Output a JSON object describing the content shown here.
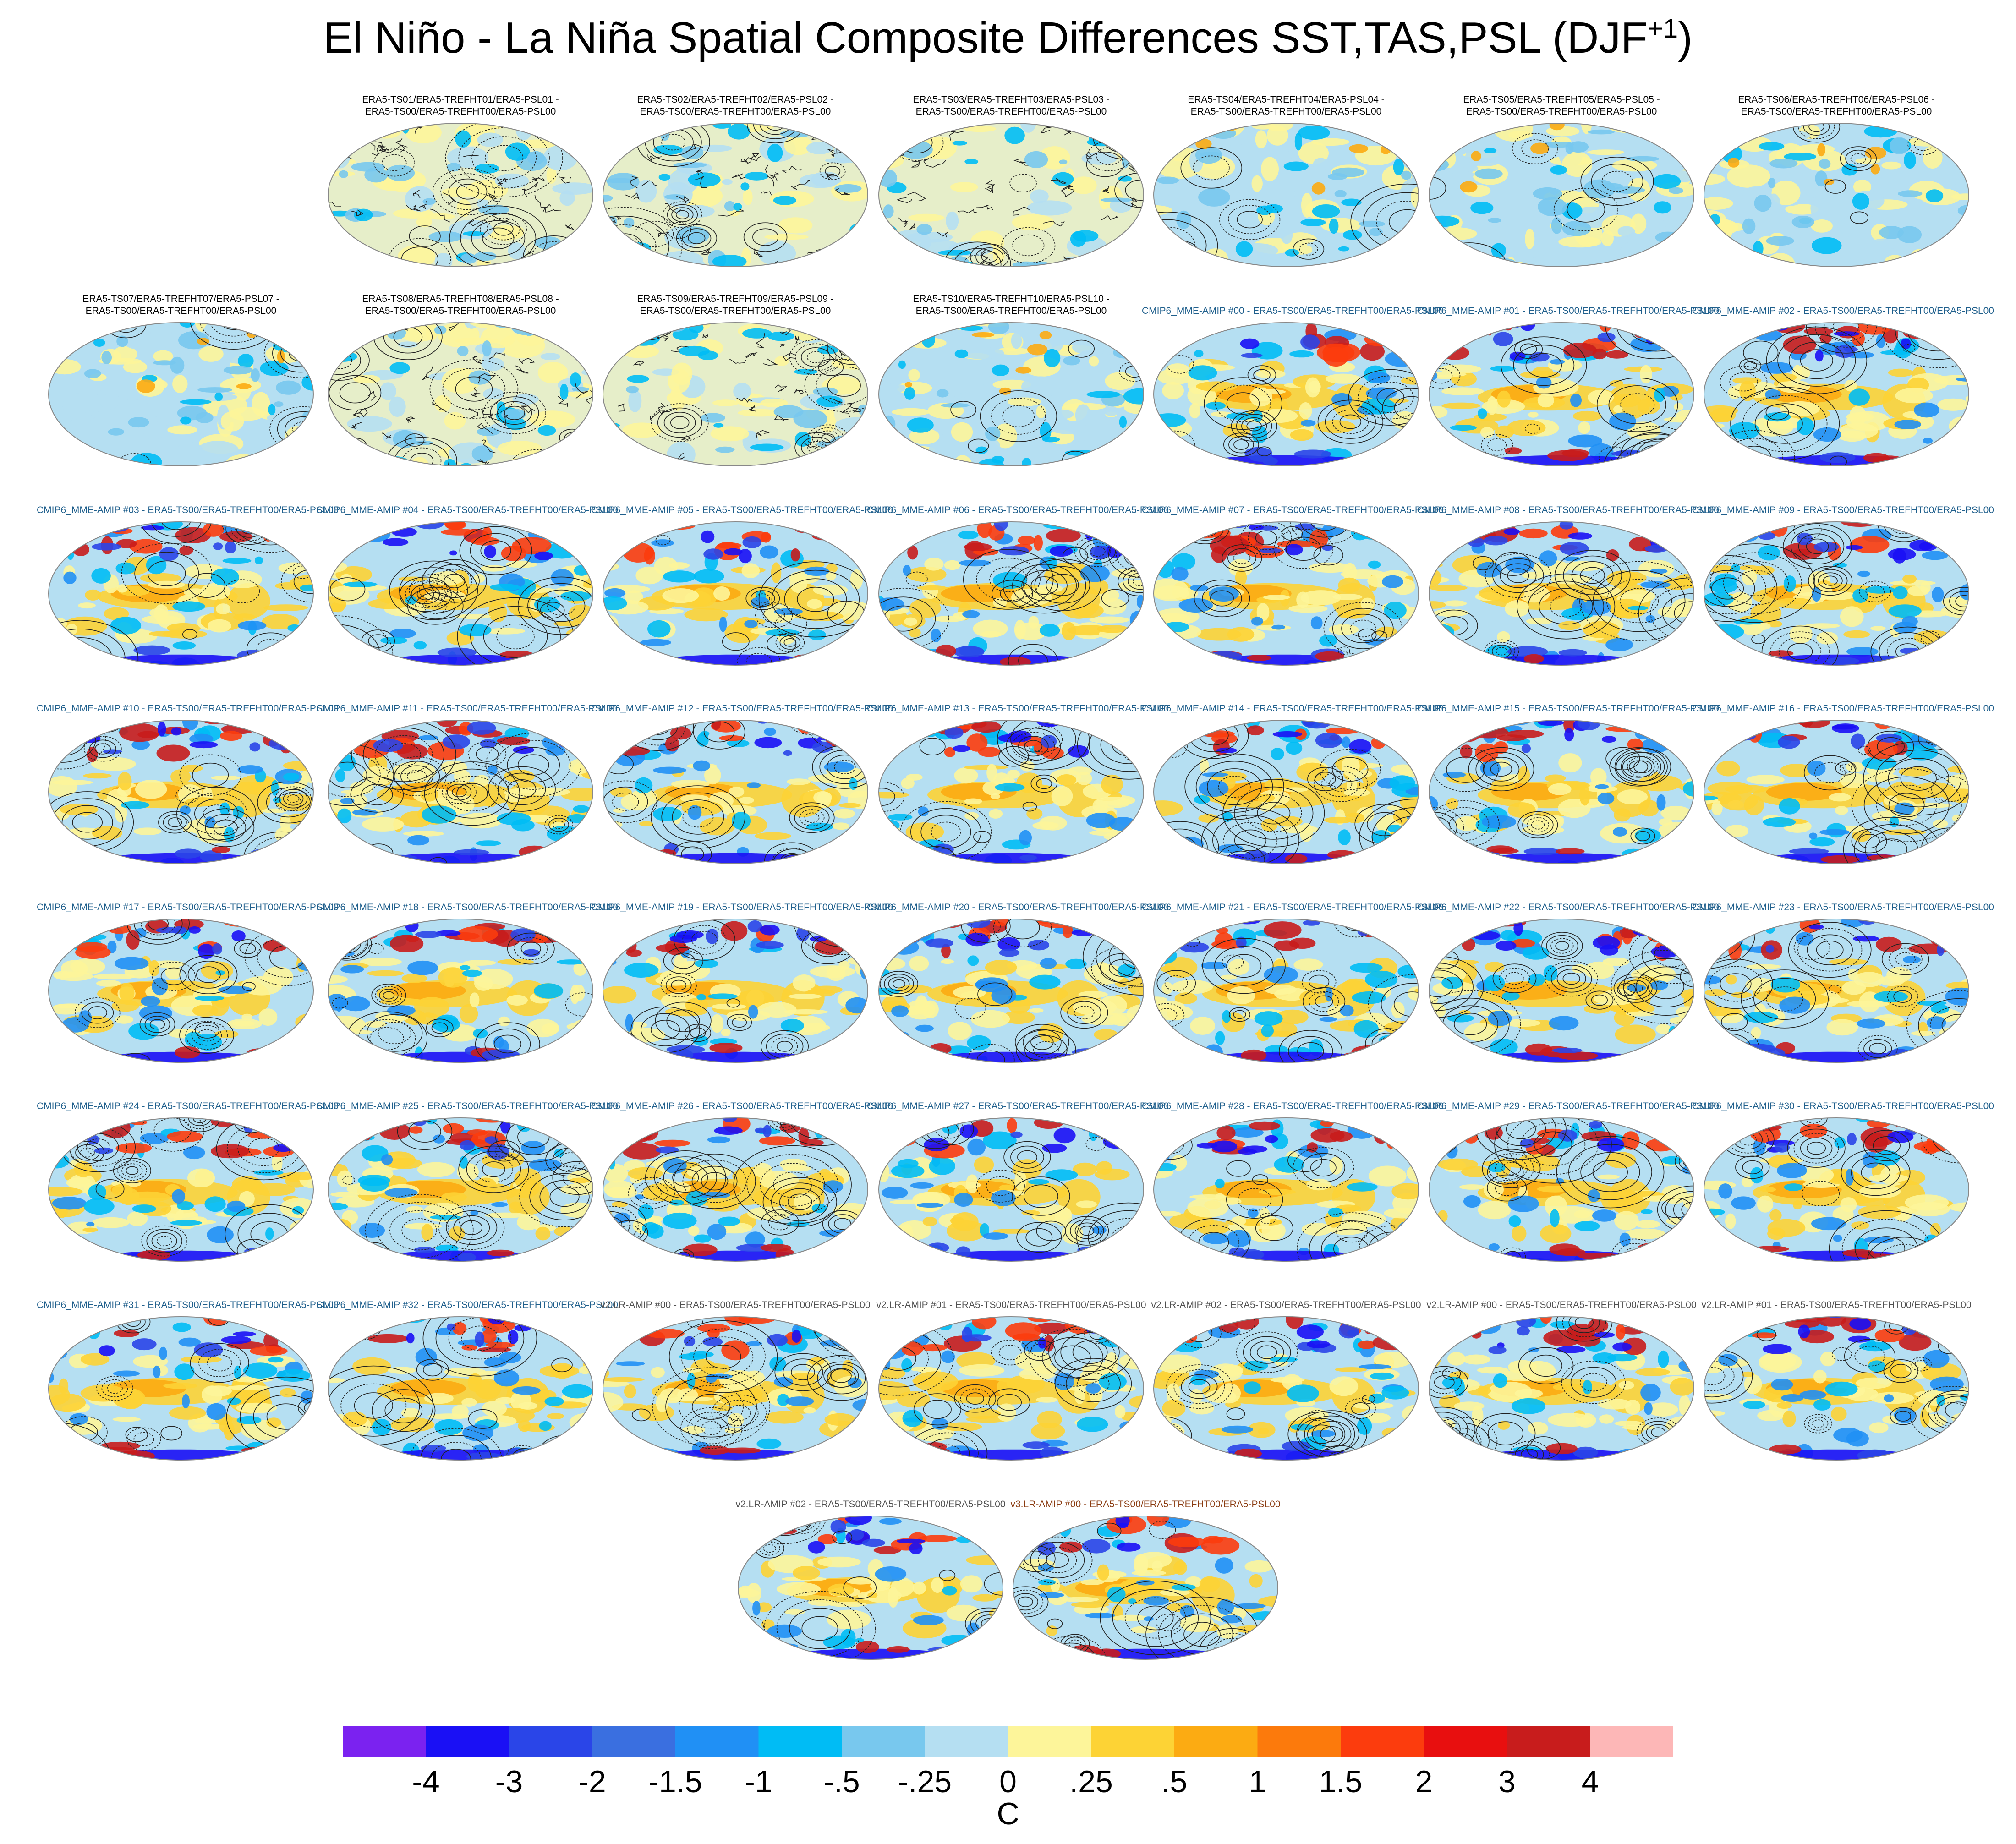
{
  "title": {
    "main": "El Niño - La Niña Spatial Composite Differences SST,TAS,PSL (DJF",
    "superscript": "+1",
    "close": ")"
  },
  "chart_data": {
    "type": "heatmap",
    "description_kind": "grid of global map panels (Robinson projection) with filled SST/TAS difference and PSL contours",
    "colorbar": {
      "unit": "C",
      "levels": [
        "-4",
        "-3",
        "-2",
        "-1.5",
        "-1",
        "-.5",
        "-.25",
        "0",
        ".25",
        ".5",
        "1",
        "1.5",
        "2",
        "3",
        "4"
      ],
      "colors": [
        "#7b22f0",
        "#1a10f5",
        "#2a45e8",
        "#3a6fe0",
        "#2090f5",
        "#00bcf5",
        "#78c8ee",
        "#b5dff2",
        "#fdf59a",
        "#fdd335",
        "#fcab12",
        "#fc7a0c",
        "#fc3c0d",
        "#e80f0f",
        "#c81c1c",
        "#fdb7b7"
      ]
    },
    "rows": [
      {
        "panels": [
          {
            "group": "era",
            "line1": "ERA5-TS01/ERA5-TREFHT01/ERA5-PSL01 -",
            "line2": "ERA5-TS00/ERA5-TREFHT00/ERA5-PSL00"
          },
          {
            "group": "era",
            "line1": "ERA5-TS02/ERA5-TREFHT02/ERA5-PSL02 -",
            "line2": "ERA5-TS00/ERA5-TREFHT00/ERA5-PSL00"
          },
          {
            "group": "era",
            "line1": "ERA5-TS03/ERA5-TREFHT03/ERA5-PSL03 -",
            "line2": "ERA5-TS00/ERA5-TREFHT00/ERA5-PSL00"
          },
          {
            "group": "era",
            "line1": "ERA5-TS04/ERA5-TREFHT04/ERA5-PSL04 -",
            "line2": "ERA5-TS00/ERA5-TREFHT00/ERA5-PSL00"
          },
          {
            "group": "era",
            "line1": "ERA5-TS05/ERA5-TREFHT05/ERA5-PSL05 -",
            "line2": "ERA5-TS00/ERA5-TREFHT00/ERA5-PSL00"
          },
          {
            "group": "era",
            "line1": "ERA5-TS06/ERA5-TREFHT06/ERA5-PSL06 -",
            "line2": "ERA5-TS00/ERA5-TREFHT00/ERA5-PSL00"
          }
        ]
      },
      {
        "panels": [
          {
            "group": "era",
            "line1": "ERA5-TS07/ERA5-TREFHT07/ERA5-PSL07 -",
            "line2": "ERA5-TS00/ERA5-TREFHT00/ERA5-PSL00"
          },
          {
            "group": "era",
            "line1": "ERA5-TS08/ERA5-TREFHT08/ERA5-PSL08 -",
            "line2": "ERA5-TS00/ERA5-TREFHT00/ERA5-PSL00"
          },
          {
            "group": "era",
            "line1": "ERA5-TS09/ERA5-TREFHT09/ERA5-PSL09 -",
            "line2": "ERA5-TS00/ERA5-TREFHT00/ERA5-PSL00"
          },
          {
            "group": "era",
            "line1": "ERA5-TS10/ERA5-TREFHT10/ERA5-PSL10 -",
            "line2": "ERA5-TS00/ERA5-TREFHT00/ERA5-PSL00"
          },
          {
            "group": "cmip",
            "line1": "CMIP6_MME-AMIP  #00 - ERA5-TS00/ERA5-TREFHT00/ERA5-PSL00"
          },
          {
            "group": "cmip",
            "line1": "CMIP6_MME-AMIP  #01 - ERA5-TS00/ERA5-TREFHT00/ERA5-PSL00"
          },
          {
            "group": "cmip",
            "line1": "CMIP6_MME-AMIP  #02 - ERA5-TS00/ERA5-TREFHT00/ERA5-PSL00"
          }
        ]
      },
      {
        "panels": [
          {
            "group": "cmip",
            "line1": "CMIP6_MME-AMIP  #03 - ERA5-TS00/ERA5-TREFHT00/ERA5-PSL00"
          },
          {
            "group": "cmip",
            "line1": "CMIP6_MME-AMIP  #04 - ERA5-TS00/ERA5-TREFHT00/ERA5-PSL00"
          },
          {
            "group": "cmip",
            "line1": "CMIP6_MME-AMIP  #05 - ERA5-TS00/ERA5-TREFHT00/ERA5-PSL00"
          },
          {
            "group": "cmip",
            "line1": "CMIP6_MME-AMIP  #06 - ERA5-TS00/ERA5-TREFHT00/ERA5-PSL00"
          },
          {
            "group": "cmip",
            "line1": "CMIP6_MME-AMIP  #07 - ERA5-TS00/ERA5-TREFHT00/ERA5-PSL00"
          },
          {
            "group": "cmip",
            "line1": "CMIP6_MME-AMIP  #08 - ERA5-TS00/ERA5-TREFHT00/ERA5-PSL00"
          },
          {
            "group": "cmip",
            "line1": "CMIP6_MME-AMIP  #09 - ERA5-TS00/ERA5-TREFHT00/ERA5-PSL00"
          }
        ]
      },
      {
        "panels": [
          {
            "group": "cmip",
            "line1": "CMIP6_MME-AMIP  #10 - ERA5-TS00/ERA5-TREFHT00/ERA5-PSL00"
          },
          {
            "group": "cmip",
            "line1": "CMIP6_MME-AMIP  #11 - ERA5-TS00/ERA5-TREFHT00/ERA5-PSL00"
          },
          {
            "group": "cmip",
            "line1": "CMIP6_MME-AMIP  #12 - ERA5-TS00/ERA5-TREFHT00/ERA5-PSL00"
          },
          {
            "group": "cmip",
            "line1": "CMIP6_MME-AMIP  #13 - ERA5-TS00/ERA5-TREFHT00/ERA5-PSL00"
          },
          {
            "group": "cmip",
            "line1": "CMIP6_MME-AMIP  #14 - ERA5-TS00/ERA5-TREFHT00/ERA5-PSL00"
          },
          {
            "group": "cmip",
            "line1": "CMIP6_MME-AMIP  #15 - ERA5-TS00/ERA5-TREFHT00/ERA5-PSL00"
          },
          {
            "group": "cmip",
            "line1": "CMIP6_MME-AMIP  #16 - ERA5-TS00/ERA5-TREFHT00/ERA5-PSL00"
          }
        ]
      },
      {
        "panels": [
          {
            "group": "cmip",
            "line1": "CMIP6_MME-AMIP  #17 - ERA5-TS00/ERA5-TREFHT00/ERA5-PSL00"
          },
          {
            "group": "cmip",
            "line1": "CMIP6_MME-AMIP  #18 - ERA5-TS00/ERA5-TREFHT00/ERA5-PSL00"
          },
          {
            "group": "cmip",
            "line1": "CMIP6_MME-AMIP  #19 - ERA5-TS00/ERA5-TREFHT00/ERA5-PSL00"
          },
          {
            "group": "cmip",
            "line1": "CMIP6_MME-AMIP  #20 - ERA5-TS00/ERA5-TREFHT00/ERA5-PSL00"
          },
          {
            "group": "cmip",
            "line1": "CMIP6_MME-AMIP  #21 - ERA5-TS00/ERA5-TREFHT00/ERA5-PSL00"
          },
          {
            "group": "cmip",
            "line1": "CMIP6_MME-AMIP  #22 - ERA5-TS00/ERA5-TREFHT00/ERA5-PSL00"
          },
          {
            "group": "cmip",
            "line1": "CMIP6_MME-AMIP  #23 - ERA5-TS00/ERA5-TREFHT00/ERA5-PSL00"
          }
        ]
      },
      {
        "panels": [
          {
            "group": "cmip",
            "line1": "CMIP6_MME-AMIP  #24 - ERA5-TS00/ERA5-TREFHT00/ERA5-PSL00"
          },
          {
            "group": "cmip",
            "line1": "CMIP6_MME-AMIP  #25 - ERA5-TS00/ERA5-TREFHT00/ERA5-PSL00"
          },
          {
            "group": "cmip",
            "line1": "CMIP6_MME-AMIP  #26 - ERA5-TS00/ERA5-TREFHT00/ERA5-PSL00"
          },
          {
            "group": "cmip",
            "line1": "CMIP6_MME-AMIP  #27 - ERA5-TS00/ERA5-TREFHT00/ERA5-PSL00"
          },
          {
            "group": "cmip",
            "line1": "CMIP6_MME-AMIP  #28 - ERA5-TS00/ERA5-TREFHT00/ERA5-PSL00"
          },
          {
            "group": "cmip",
            "line1": "CMIP6_MME-AMIP  #29 - ERA5-TS00/ERA5-TREFHT00/ERA5-PSL00"
          },
          {
            "group": "cmip",
            "line1": "CMIP6_MME-AMIP  #30 - ERA5-TS00/ERA5-TREFHT00/ERA5-PSL00"
          }
        ]
      },
      {
        "panels": [
          {
            "group": "cmip",
            "line1": "CMIP6_MME-AMIP  #31 - ERA5-TS00/ERA5-TREFHT00/ERA5-PSL00"
          },
          {
            "group": "cmip",
            "line1": "CMIP6_MME-AMIP  #32 - ERA5-TS00/ERA5-TREFHT00/ERA5-PSL00"
          },
          {
            "group": "v2lr",
            "line1": "v2.LR-AMIP  #00 - ERA5-TS00/ERA5-TREFHT00/ERA5-PSL00"
          },
          {
            "group": "v2lr",
            "line1": "v2.LR-AMIP  #01 - ERA5-TS00/ERA5-TREFHT00/ERA5-PSL00"
          },
          {
            "group": "v2lr",
            "line1": "v2.LR-AMIP  #02 - ERA5-TS00/ERA5-TREFHT00/ERA5-PSL00"
          },
          {
            "group": "v2lr",
            "line1": "v2.LR-AMIP  #00 - ERA5-TS00/ERA5-TREFHT00/ERA5-PSL00"
          },
          {
            "group": "v2lr",
            "line1": "v2.LR-AMIP  #01 - ERA5-TS00/ERA5-TREFHT00/ERA5-PSL00"
          }
        ]
      },
      {
        "panels": [
          {
            "group": "v2lr",
            "line1": "v2.LR-AMIP  #02 - ERA5-TS00/ERA5-TREFHT00/ERA5-PSL00"
          },
          {
            "group": "v3lr",
            "line1": "v3.LR-AMIP  #00 - ERA5-TS00/ERA5-TREFHT00/ERA5-PSL00"
          }
        ]
      }
    ]
  }
}
